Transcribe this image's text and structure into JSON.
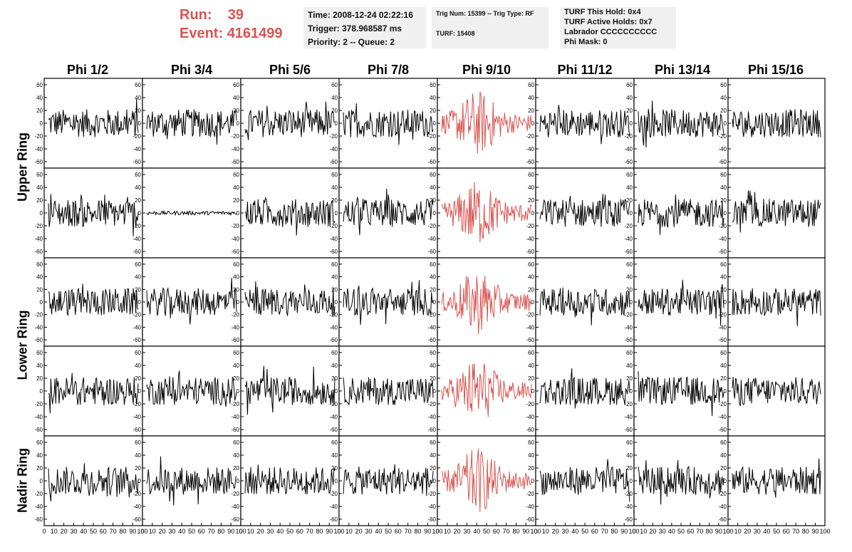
{
  "header": {
    "run_label": "Run:",
    "run_value": "39",
    "event_label": "Event:",
    "event_value": "4161499",
    "time": "Time: 2008-12-24 02:22:16",
    "trigger": "Trigger: 378.968587 ms",
    "priority": "Priority: 2 -- Queue: 2",
    "trig_num": "Trig Num: 15399 -- Trig Type: RF",
    "turf": "TURF: 15408",
    "turf_hold": "TURF This Hold: 0x4",
    "turf_active": "TURF Active Holds: 0x7",
    "labrador": "Labrador CCCCCCCCCC",
    "phi_mask": "Phi Mask: 0"
  },
  "columns": [
    "Phi 1/2",
    "Phi 3/4",
    "Phi 5/6",
    "Phi 7/8",
    "Phi 9/10",
    "Phi 11/12",
    "Phi 13/14",
    "Phi 15/16"
  ],
  "ring_labels": [
    "Upper Ring",
    "Lower Ring",
    "Nadir Ring"
  ],
  "y_ticks": [
    "60",
    "40",
    "20",
    "0",
    "-20",
    "-40",
    "-60"
  ],
  "x_ticks": [
    "0",
    "10",
    "20",
    "30",
    "40",
    "50",
    "60",
    "70",
    "80",
    "90",
    "100"
  ],
  "colors": {
    "trace": "#000000",
    "highlight": "#d9534f",
    "header_red": "#d9534f",
    "box_bg": "#f0f0f0"
  },
  "highlight_column": "Phi 9/10"
}
